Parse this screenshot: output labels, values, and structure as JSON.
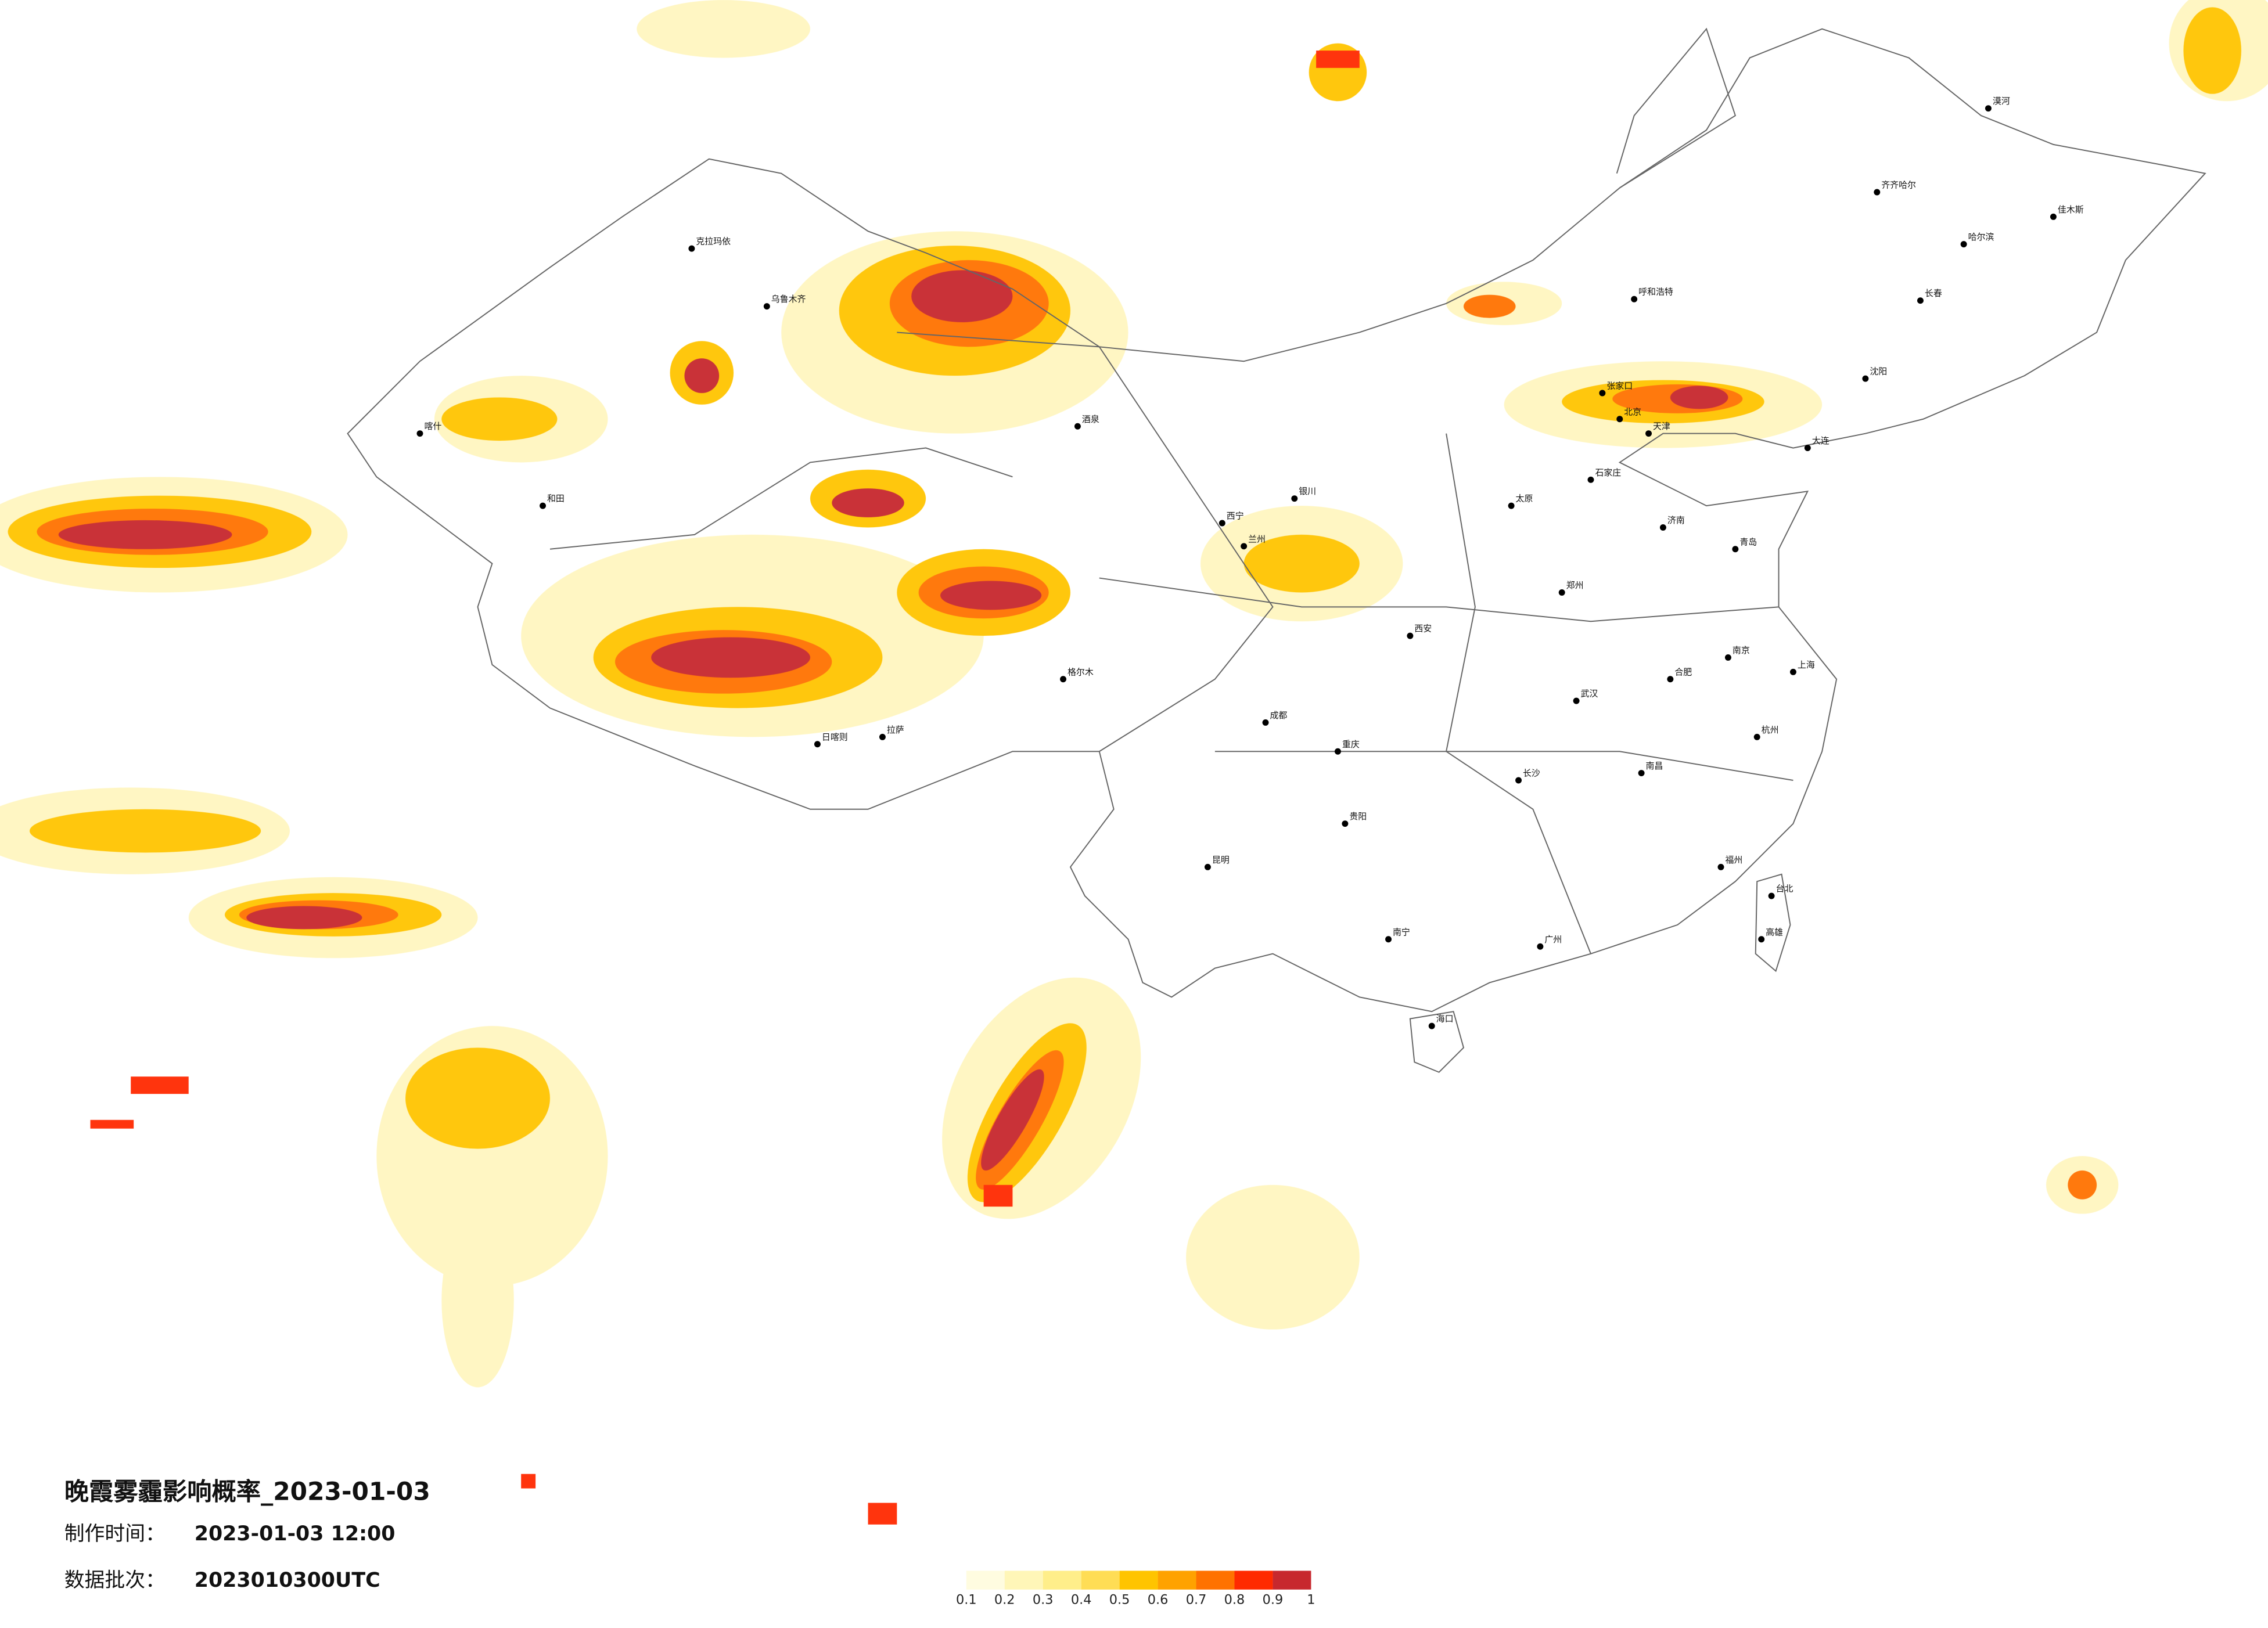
{
  "title": "晚霞雾霾影响概率_2023-01-03",
  "meta": [
    {
      "label": "制作时间：",
      "value": "2023-01-03 12:00"
    },
    {
      "label": "数据批次：",
      "value": "2023010300UTC"
    }
  ],
  "legend": {
    "colors": [
      "#fffce0",
      "#fff6b8",
      "#ffee8a",
      "#ffdd55",
      "#ffc400",
      "#ffa200",
      "#ff7200",
      "#ff2a00",
      "#c7282e"
    ],
    "ticks": [
      0.1,
      0.2,
      0.3,
      0.4,
      0.5,
      0.6,
      0.7,
      0.8,
      0.9,
      1
    ]
  },
  "cities": [
    "漠河",
    "齐齐哈尔",
    "哈尔滨",
    "佳木斯",
    "长春",
    "沈阳",
    "大连",
    "呼和浩特",
    "北京",
    "天津",
    "石家庄",
    "太原",
    "济南",
    "青岛",
    "郑州",
    "西安",
    "兰州",
    "西宁",
    "银川",
    "乌鲁木齐",
    "克拉玛依",
    "喀什",
    "和田",
    "拉萨",
    "日喀则",
    "成都",
    "重庆",
    "贵阳",
    "昆明",
    "南宁",
    "广州",
    "海口",
    "长沙",
    "武汉",
    "南昌",
    "合肥",
    "南京",
    "上海",
    "杭州",
    "福州",
    "台北",
    "高雄",
    "格尔木",
    "酒泉",
    "张家口"
  ]
}
